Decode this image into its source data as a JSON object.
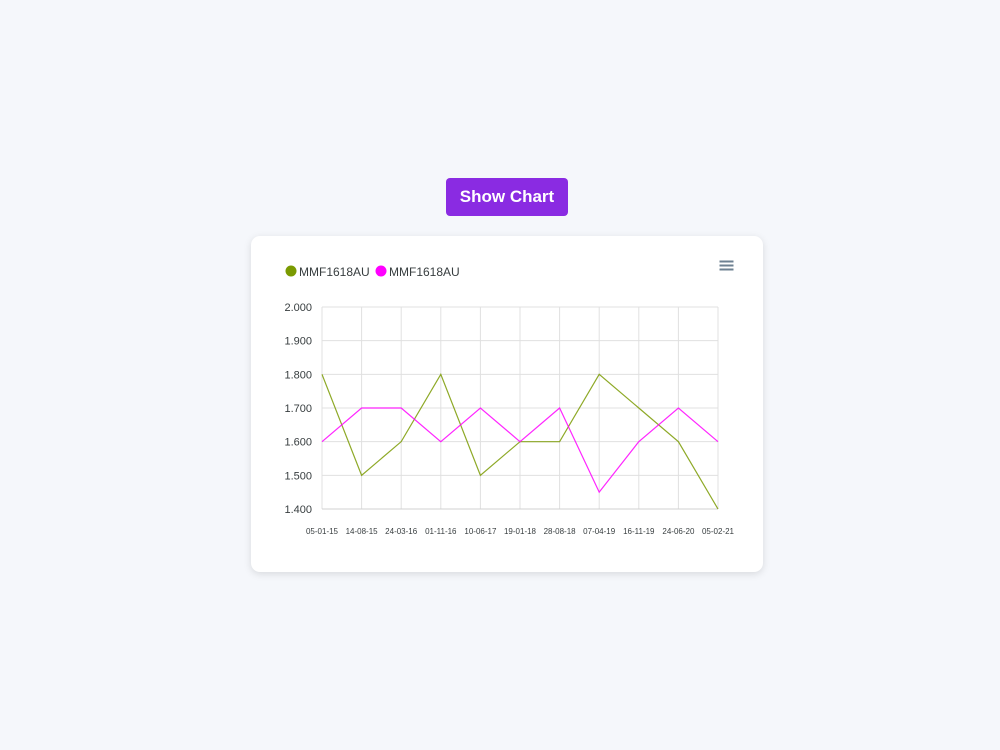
{
  "button": {
    "label": "Show Chart",
    "color": "#8a2be2"
  },
  "toolbar": {
    "menu_icon": "hamburger-menu-icon"
  },
  "chart_data": {
    "type": "line",
    "categories": [
      "05-01-15",
      "14-08-15",
      "24-03-16",
      "01-11-16",
      "10-06-17",
      "19-01-18",
      "28-08-18",
      "07-04-19",
      "16-11-19",
      "24-06-20",
      "05-02-21"
    ],
    "series": [
      {
        "name": "MMF1618AU",
        "color": "#7a9a01",
        "values": [
          1.8,
          1.5,
          1.6,
          1.8,
          1.5,
          1.6,
          1.6,
          1.8,
          1.7,
          1.6,
          1.4
        ]
      },
      {
        "name": "MMF1618AU",
        "color": "#ff00ff",
        "values": [
          1.6,
          1.7,
          1.7,
          1.6,
          1.7,
          1.6,
          1.7,
          1.45,
          1.6,
          1.7,
          1.6
        ]
      }
    ],
    "y_ticks": [
      "2.000",
      "1.900",
      "1.800",
      "1.700",
      "1.600",
      "1.500",
      "1.400"
    ],
    "ylim": [
      1.4,
      2.0
    ],
    "grid": true,
    "legend": "top-left"
  }
}
